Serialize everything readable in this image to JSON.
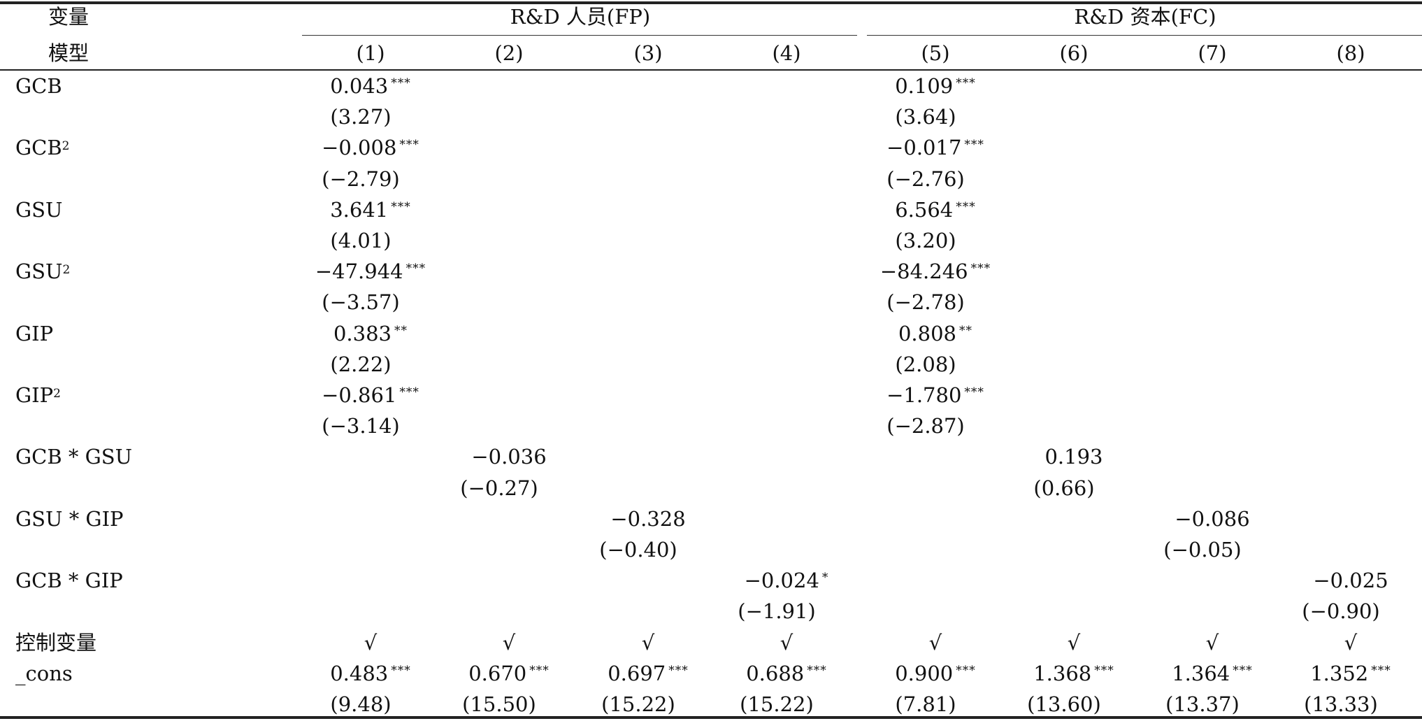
{
  "header": {
    "var_label": "变量",
    "model_label": "模型",
    "group_fp": "R&D 人员(FP)",
    "group_fc": "R&D 资本(FC)",
    "models": [
      "(1)",
      "(2)",
      "(3)",
      "(4)",
      "(5)",
      "(6)",
      "(7)",
      "(8)"
    ]
  },
  "rows": [
    {
      "label": "GCB",
      "sup": "",
      "cells": [
        {
          "col": 1,
          "coef": "0.043",
          "stars": "***",
          "t": "(3.27)"
        },
        {
          "col": 5,
          "coef": "0.109",
          "stars": "***",
          "t": "(3.64)"
        }
      ]
    },
    {
      "label": "GCB",
      "sup": "2",
      "cells": [
        {
          "col": 1,
          "coef": "−0.008",
          "stars": "***",
          "t": "(−2.79)"
        },
        {
          "col": 5,
          "coef": "−0.017",
          "stars": "***",
          "t": "(−2.76)"
        }
      ]
    },
    {
      "label": "GSU",
      "sup": "",
      "cells": [
        {
          "col": 1,
          "coef": "3.641",
          "stars": "***",
          "t": "(4.01)"
        },
        {
          "col": 5,
          "coef": "6.564",
          "stars": "***",
          "t": "(3.20)"
        }
      ]
    },
    {
      "label": "GSU",
      "sup": "2",
      "cells": [
        {
          "col": 1,
          "coef": "−47.944",
          "stars": "***",
          "t": "(−3.57)"
        },
        {
          "col": 5,
          "coef": "−84.246",
          "stars": "***",
          "t": "(−2.78)"
        }
      ]
    },
    {
      "label": "GIP",
      "sup": "",
      "cells": [
        {
          "col": 1,
          "coef": "0.383",
          "stars": "**",
          "t": "(2.22)"
        },
        {
          "col": 5,
          "coef": "0.808",
          "stars": "**",
          "t": "(2.08)"
        }
      ]
    },
    {
      "label": "GIP",
      "sup": "2",
      "cells": [
        {
          "col": 1,
          "coef": "−0.861",
          "stars": "***",
          "t": "(−3.14)"
        },
        {
          "col": 5,
          "coef": "−1.780",
          "stars": "***",
          "t": "(−2.87)"
        }
      ]
    },
    {
      "label": "GCB * GSU",
      "sup": "",
      "cells": [
        {
          "col": 2,
          "coef": "−0.036",
          "stars": "",
          "t": "(−0.27)"
        },
        {
          "col": 6,
          "coef": "0.193",
          "stars": "",
          "t": "(0.66)"
        }
      ]
    },
    {
      "label": "GSU * GIP",
      "sup": "",
      "cells": [
        {
          "col": 3,
          "coef": "−0.328",
          "stars": "",
          "t": "(−0.40)"
        },
        {
          "col": 7,
          "coef": "−0.086",
          "stars": "",
          "t": "(−0.05)"
        }
      ]
    },
    {
      "label": "GCB * GIP",
      "sup": "",
      "cells": [
        {
          "col": 4,
          "coef": "−0.024",
          "stars": "*",
          "t": "(−1.91)"
        },
        {
          "col": 8,
          "coef": "−0.025",
          "stars": "",
          "t": "(−0.90)"
        }
      ]
    }
  ],
  "controls": {
    "label": "控制变量",
    "marks": [
      "√",
      "√",
      "√",
      "√",
      "√",
      "√",
      "√",
      "√"
    ]
  },
  "cons": {
    "label": "_cons",
    "coefs": [
      "0.483",
      "0.670",
      "0.697",
      "0.688",
      "0.900",
      "1.368",
      "1.364",
      "1.352"
    ],
    "stars": [
      "***",
      "***",
      "***",
      "***",
      "***",
      "***",
      "***",
      "***"
    ],
    "t": [
      "(9.48)",
      "(15.50)",
      "(15.22)",
      "(15.22)",
      "(7.81)",
      "(13.60)",
      "(13.37)",
      "(13.33)"
    ]
  }
}
